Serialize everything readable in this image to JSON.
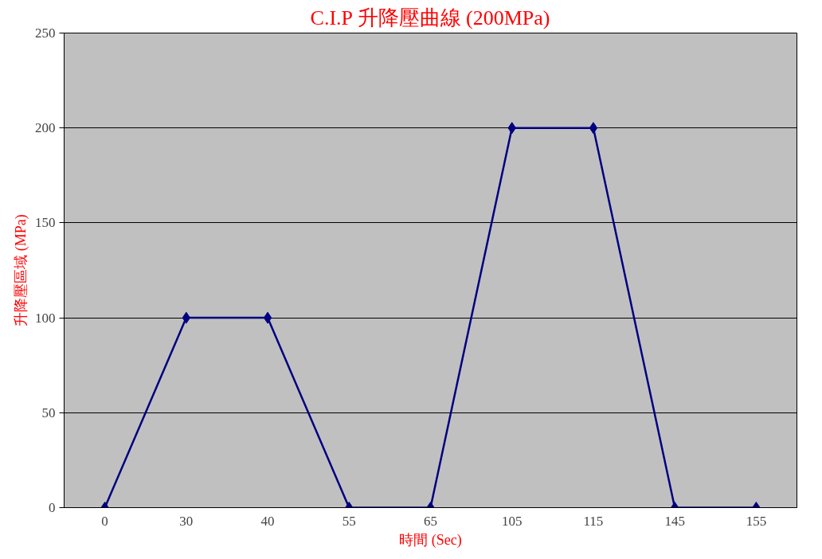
{
  "chart_data": {
    "type": "line",
    "title": "C.I.P 升降壓曲線 (200MPa)",
    "xlabel": "時間 (Sec)",
    "ylabel": "升降壓區域 (MPa)",
    "categories": [
      "0",
      "30",
      "40",
      "55",
      "65",
      "105",
      "115",
      "145",
      "155"
    ],
    "series": [
      {
        "color": "#000080",
        "values": [
          0,
          100,
          100,
          0,
          0,
          200,
          200,
          0,
          0
        ]
      }
    ],
    "ylim": [
      0,
      250
    ],
    "yticks": [
      0,
      50,
      100,
      150,
      200,
      250
    ],
    "grid": "y",
    "marker": "diamond",
    "line_style": "solid"
  }
}
